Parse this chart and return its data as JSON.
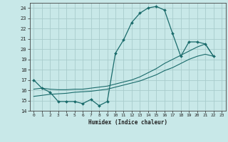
{
  "xlabel": "Humidex (Indice chaleur)",
  "xlim": [
    -0.5,
    23.5
  ],
  "ylim": [
    14,
    24.5
  ],
  "yticks": [
    14,
    15,
    16,
    17,
    18,
    19,
    20,
    21,
    22,
    23,
    24
  ],
  "xticks": [
    0,
    1,
    2,
    3,
    4,
    5,
    6,
    7,
    8,
    9,
    10,
    11,
    12,
    13,
    14,
    15,
    16,
    17,
    18,
    19,
    20,
    21,
    22,
    23
  ],
  "bg_color": "#c8e8e8",
  "grid_color": "#a8cccc",
  "line_color": "#1a6b6b",
  "line1_x": [
    0,
    1,
    2,
    3,
    4,
    5,
    6,
    7,
    8,
    9,
    10,
    11,
    12,
    13,
    14,
    15,
    16,
    17,
    18,
    19,
    20,
    21,
    22
  ],
  "line1_y": [
    17.0,
    16.2,
    15.8,
    14.9,
    14.9,
    14.9,
    14.7,
    15.1,
    14.5,
    14.9,
    19.6,
    20.9,
    22.6,
    23.5,
    24.0,
    24.15,
    23.8,
    21.5,
    19.3,
    20.7,
    20.7,
    20.5,
    19.3
  ],
  "line2_x": [
    0,
    1,
    2,
    3,
    4,
    5,
    6,
    7,
    8,
    9,
    10,
    11,
    12,
    13,
    14,
    15,
    16,
    17,
    18,
    19,
    20,
    21,
    22
  ],
  "line2_y": [
    16.1,
    16.2,
    16.1,
    16.05,
    16.05,
    16.1,
    16.1,
    16.2,
    16.3,
    16.4,
    16.6,
    16.8,
    17.0,
    17.3,
    17.7,
    18.1,
    18.6,
    19.0,
    19.4,
    19.8,
    20.2,
    20.5,
    19.3
  ],
  "line3_x": [
    0,
    1,
    2,
    3,
    4,
    5,
    6,
    7,
    8,
    9,
    10,
    11,
    12,
    13,
    14,
    15,
    16,
    17,
    18,
    19,
    20,
    21,
    22
  ],
  "line3_y": [
    15.4,
    15.5,
    15.6,
    15.65,
    15.7,
    15.8,
    15.85,
    15.9,
    16.0,
    16.1,
    16.3,
    16.5,
    16.7,
    16.9,
    17.2,
    17.5,
    17.9,
    18.2,
    18.6,
    19.0,
    19.3,
    19.5,
    19.3
  ]
}
